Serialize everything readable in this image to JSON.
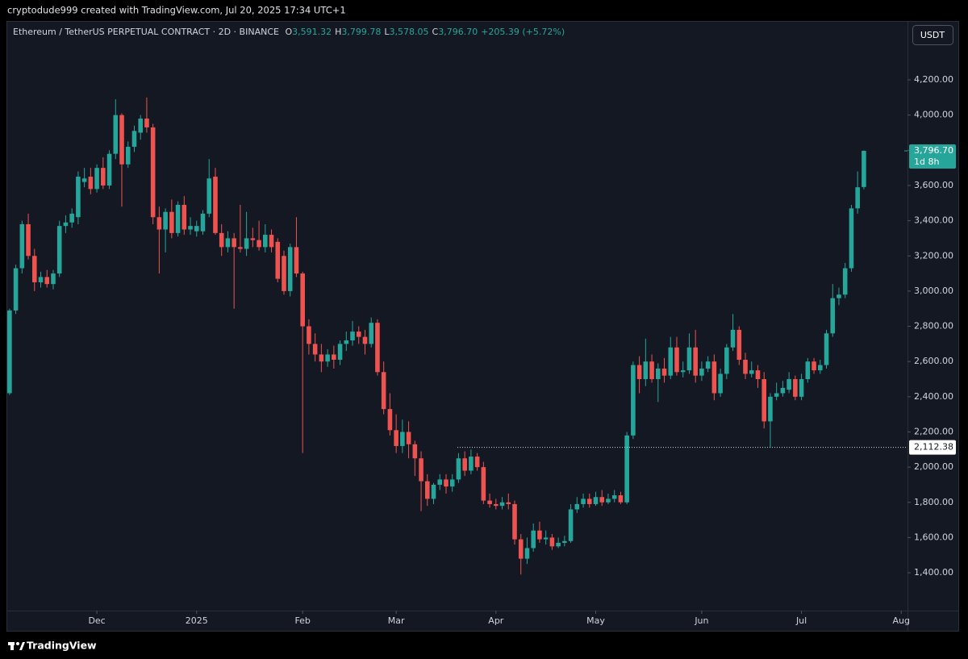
{
  "header": {
    "credit": "cryptodude999 created with TradingView.com, Jul 20, 2025 17:34 UTC+1",
    "brand": "TradingView"
  },
  "chart_data": {
    "type": "candlestick",
    "title": "Ethereum / TetherUS PERPETUAL CONTRACT · 2D · BINANCE",
    "legend_values": [
      {
        "key": "O",
        "value": "3,591.32"
      },
      {
        "key": "H",
        "value": "3,799.78"
      },
      {
        "key": "L",
        "value": "3,578.05"
      },
      {
        "key": "C",
        "value": "3,796.70"
      }
    ],
    "change": "+205.39 (+5.72%)",
    "currency": "USDT",
    "up_color": "#26a69a",
    "down_color": "#ef5350",
    "last_price": {
      "value": 3796.7,
      "label": "3,796.70",
      "countdown": "1d 8h"
    },
    "level_line": {
      "value": 2112.38,
      "label": "2,112.38"
    },
    "ylim": [
      1185,
      4530
    ],
    "yticks": [
      {
        "value": 1400,
        "label": "1,400.00"
      },
      {
        "value": 1600,
        "label": "1,600.00"
      },
      {
        "value": 1800,
        "label": "1,800.00"
      },
      {
        "value": 2000,
        "label": "2,000.00"
      },
      {
        "value": 2200,
        "label": "2,200.00"
      },
      {
        "value": 2400,
        "label": "2,400.00"
      },
      {
        "value": 2600,
        "label": "2,600.00"
      },
      {
        "value": 2800,
        "label": "2,800.00"
      },
      {
        "value": 3000,
        "label": "3,000.00"
      },
      {
        "value": 3200,
        "label": "3,200.00"
      },
      {
        "value": 3400,
        "label": "3,400.00"
      },
      {
        "value": 3600,
        "label": "3,600.00"
      },
      {
        "value": 3800,
        "label": "3,800.00"
      },
      {
        "value": 4000,
        "label": "4,000.00"
      },
      {
        "value": 4200,
        "label": "4,200.00"
      }
    ],
    "xlim": [
      -0.5,
      144
    ],
    "xticks": [
      {
        "value": 14,
        "label": "Dec"
      },
      {
        "value": 30,
        "label": "2025"
      },
      {
        "value": 47,
        "label": "Feb"
      },
      {
        "value": 62,
        "label": "Mar"
      },
      {
        "value": 78,
        "label": "Apr"
      },
      {
        "value": 94,
        "label": "May"
      },
      {
        "value": 111,
        "label": "Jun"
      },
      {
        "value": 127,
        "label": "Jul"
      },
      {
        "value": 143,
        "label": "Aug"
      }
    ],
    "grid": false,
    "candles": [
      [
        2420,
        2900,
        2410,
        2890
      ],
      [
        2890,
        3150,
        2870,
        3130
      ],
      [
        3130,
        3400,
        3100,
        3380
      ],
      [
        3380,
        3440,
        3180,
        3200
      ],
      [
        3200,
        3240,
        3000,
        3050
      ],
      [
        3050,
        3110,
        3020,
        3080
      ],
      [
        3080,
        3120,
        3020,
        3040
      ],
      [
        3040,
        3120,
        3010,
        3100
      ],
      [
        3100,
        3400,
        3080,
        3370
      ],
      [
        3370,
        3430,
        3330,
        3390
      ],
      [
        3390,
        3470,
        3360,
        3440
      ],
      [
        3420,
        3680,
        3380,
        3650
      ],
      [
        3620,
        3700,
        3590,
        3640
      ],
      [
        3650,
        3700,
        3550,
        3580
      ],
      [
        3580,
        3720,
        3560,
        3700
      ],
      [
        3700,
        3760,
        3580,
        3600
      ],
      [
        3600,
        3800,
        3580,
        3780
      ],
      [
        3780,
        4090,
        3750,
        4000
      ],
      [
        4000,
        4010,
        3480,
        3720
      ],
      [
        3720,
        3850,
        3700,
        3820
      ],
      [
        3820,
        3940,
        3790,
        3910
      ],
      [
        3900,
        4000,
        3860,
        3980
      ],
      [
        3980,
        4100,
        3900,
        3930
      ],
      [
        3930,
        3950,
        3380,
        3420
      ],
      [
        3420,
        3480,
        3100,
        3350
      ],
      [
        3350,
        3470,
        3220,
        3450
      ],
      [
        3450,
        3520,
        3300,
        3330
      ],
      [
        3330,
        3510,
        3310,
        3490
      ],
      [
        3490,
        3540,
        3320,
        3350
      ],
      [
        3350,
        3420,
        3320,
        3370
      ],
      [
        3340,
        3400,
        3310,
        3370
      ],
      [
        3340,
        3460,
        3320,
        3440
      ],
      [
        3440,
        3750,
        3420,
        3640
      ],
      [
        3650,
        3700,
        3320,
        3330
      ],
      [
        3330,
        3380,
        3200,
        3250
      ],
      [
        3250,
        3340,
        3220,
        3300
      ],
      [
        3300,
        3330,
        2900,
        3250
      ],
      [
        3250,
        3490,
        3220,
        3240
      ],
      [
        3240,
        3450,
        3200,
        3300
      ],
      [
        3300,
        3360,
        3250,
        3290
      ],
      [
        3290,
        3400,
        3230,
        3250
      ],
      [
        3250,
        3380,
        3220,
        3320
      ],
      [
        3320,
        3350,
        3220,
        3250
      ],
      [
        3280,
        3300,
        3050,
        3070
      ],
      [
        3200,
        3230,
        2980,
        3000
      ],
      [
        3000,
        3270,
        2970,
        3250
      ],
      [
        3250,
        3420,
        3080,
        3100
      ],
      [
        3100,
        3110,
        2080,
        2800
      ],
      [
        2800,
        2840,
        2640,
        2700
      ],
      [
        2700,
        2760,
        2600,
        2640
      ],
      [
        2640,
        2700,
        2540,
        2600
      ],
      [
        2600,
        2670,
        2570,
        2640
      ],
      [
        2640,
        2690,
        2560,
        2610
      ],
      [
        2610,
        2720,
        2580,
        2700
      ],
      [
        2700,
        2770,
        2660,
        2720
      ],
      [
        2720,
        2830,
        2690,
        2770
      ],
      [
        2770,
        2800,
        2700,
        2740
      ],
      [
        2740,
        2780,
        2640,
        2700
      ],
      [
        2700,
        2850,
        2680,
        2820
      ],
      [
        2820,
        2840,
        2520,
        2540
      ],
      [
        2540,
        2600,
        2300,
        2330
      ],
      [
        2330,
        2420,
        2180,
        2210
      ],
      [
        2210,
        2300,
        2080,
        2120
      ],
      [
        2120,
        2270,
        2080,
        2200
      ],
      [
        2200,
        2260,
        2050,
        2130
      ],
      [
        2130,
        2150,
        1950,
        2050
      ],
      [
        2050,
        2090,
        1750,
        1920
      ],
      [
        1920,
        1960,
        1780,
        1820
      ],
      [
        1820,
        1910,
        1790,
        1900
      ],
      [
        1900,
        1960,
        1870,
        1930
      ],
      [
        1930,
        1960,
        1850,
        1890
      ],
      [
        1890,
        1960,
        1860,
        1930
      ],
      [
        1930,
        2080,
        1910,
        2050
      ],
      [
        2050,
        2090,
        1950,
        1980
      ],
      [
        1980,
        2100,
        1960,
        2060
      ],
      [
        2060,
        2080,
        1980,
        2000
      ],
      [
        2000,
        2030,
        1790,
        1810
      ],
      [
        1810,
        1850,
        1770,
        1790
      ],
      [
        1790,
        1820,
        1760,
        1780
      ],
      [
        1780,
        1830,
        1760,
        1800
      ],
      [
        1800,
        1850,
        1760,
        1790
      ],
      [
        1790,
        1810,
        1560,
        1590
      ],
      [
        1590,
        1620,
        1390,
        1480
      ],
      [
        1480,
        1600,
        1450,
        1540
      ],
      [
        1540,
        1680,
        1520,
        1640
      ],
      [
        1640,
        1690,
        1570,
        1590
      ],
      [
        1590,
        1640,
        1560,
        1600
      ],
      [
        1600,
        1620,
        1530,
        1550
      ],
      [
        1550,
        1600,
        1540,
        1570
      ],
      [
        1570,
        1610,
        1550,
        1580
      ],
      [
        1580,
        1790,
        1570,
        1760
      ],
      [
        1760,
        1830,
        1740,
        1790
      ],
      [
        1790,
        1850,
        1770,
        1820
      ],
      [
        1820,
        1850,
        1770,
        1790
      ],
      [
        1790,
        1860,
        1780,
        1830
      ],
      [
        1830,
        1870,
        1780,
        1800
      ],
      [
        1800,
        1850,
        1790,
        1820
      ],
      [
        1820,
        1870,
        1800,
        1840
      ],
      [
        1840,
        1860,
        1790,
        1800
      ],
      [
        1800,
        2200,
        1790,
        2180
      ],
      [
        2180,
        2600,
        2160,
        2580
      ],
      [
        2580,
        2630,
        2420,
        2500
      ],
      [
        2500,
        2730,
        2460,
        2600
      ],
      [
        2600,
        2640,
        2480,
        2500
      ],
      [
        2500,
        2590,
        2370,
        2560
      ],
      [
        2560,
        2620,
        2480,
        2520
      ],
      [
        2520,
        2740,
        2500,
        2680
      ],
      [
        2680,
        2740,
        2520,
        2540
      ],
      [
        2540,
        2600,
        2510,
        2550
      ],
      [
        2550,
        2760,
        2530,
        2680
      ],
      [
        2680,
        2780,
        2480,
        2520
      ],
      [
        2520,
        2600,
        2490,
        2560
      ],
      [
        2560,
        2630,
        2540,
        2600
      ],
      [
        2600,
        2640,
        2380,
        2420
      ],
      [
        2420,
        2560,
        2400,
        2530
      ],
      [
        2530,
        2700,
        2500,
        2680
      ],
      [
        2680,
        2870,
        2660,
        2780
      ],
      [
        2780,
        2800,
        2580,
        2610
      ],
      [
        2610,
        2650,
        2500,
        2530
      ],
      [
        2530,
        2600,
        2510,
        2550
      ],
      [
        2550,
        2580,
        2450,
        2500
      ],
      [
        2500,
        2540,
        2220,
        2260
      ],
      [
        2260,
        2420,
        2112.38,
        2400
      ],
      [
        2400,
        2480,
        2380,
        2420
      ],
      [
        2420,
        2490,
        2400,
        2450
      ],
      [
        2440,
        2540,
        2420,
        2500
      ],
      [
        2500,
        2520,
        2380,
        2400
      ],
      [
        2400,
        2530,
        2380,
        2500
      ],
      [
        2500,
        2620,
        2480,
        2600
      ],
      [
        2600,
        2620,
        2530,
        2550
      ],
      [
        2550,
        2610,
        2530,
        2580
      ],
      [
        2580,
        2780,
        2560,
        2760
      ],
      [
        2760,
        3040,
        2740,
        2960
      ],
      [
        2960,
        3020,
        2920,
        2980
      ],
      [
        2980,
        3160,
        2960,
        3130
      ],
      [
        3130,
        3490,
        3110,
        3470
      ],
      [
        3470,
        3680,
        3440,
        3590
      ],
      [
        3591.32,
        3799.78,
        3578.05,
        3796.7
      ]
    ]
  }
}
